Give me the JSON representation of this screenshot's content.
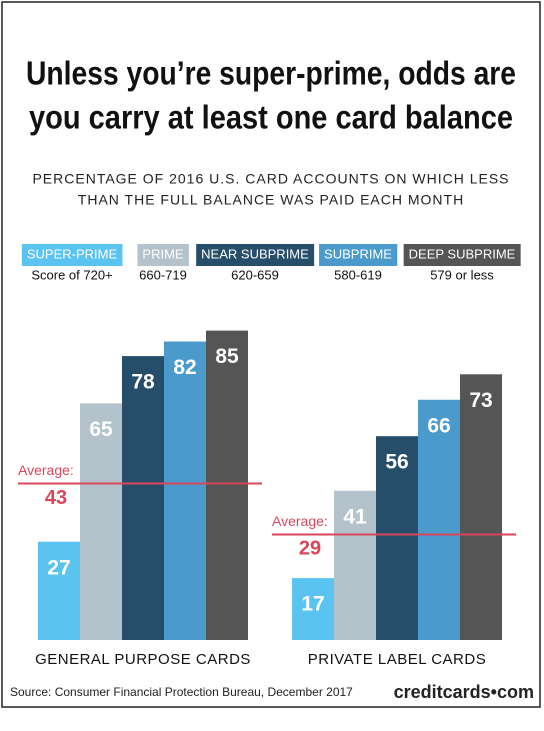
{
  "chart_data": {
    "type": "bar",
    "title": [
      "Unless you’re super-prime, odds are",
      "you carry at least one card balance"
    ],
    "subtitle": [
      "PERCENTAGE OF 2016 U.S. CARD ACCOUNTS ON WHICH LESS",
      "THAN THE FULL BALANCE WAS PAID EACH MONTH"
    ],
    "categories": [
      "GENERAL PURPOSE CARDS",
      "PRIVATE LABEL CARDS"
    ],
    "series": [
      {
        "name": "SUPER-PRIME",
        "range": "Score of 720+",
        "color": "#5bc3f0",
        "values": [
          27,
          17
        ]
      },
      {
        "name": "PRIME",
        "range": "660-719",
        "color": "#b4c3cb",
        "values": [
          65,
          41
        ]
      },
      {
        "name": "NEAR SUBPRIME",
        "range": "620-659",
        "color": "#264e6b",
        "values": [
          78,
          56
        ]
      },
      {
        "name": "SUBPRIME",
        "range": "580-619",
        "color": "#4a9bcc",
        "values": [
          82,
          66
        ]
      },
      {
        "name": "DEEP SUBPRIME",
        "range": "579 or less",
        "color": "#555555",
        "values": [
          85,
          73
        ]
      }
    ],
    "average_label": "Average:",
    "averages": [
      43,
      29
    ],
    "average_color": "#d9455a",
    "source": "Source: Consumer Financial Protection Bureau, December 2017",
    "brand": "creditcards•com"
  }
}
